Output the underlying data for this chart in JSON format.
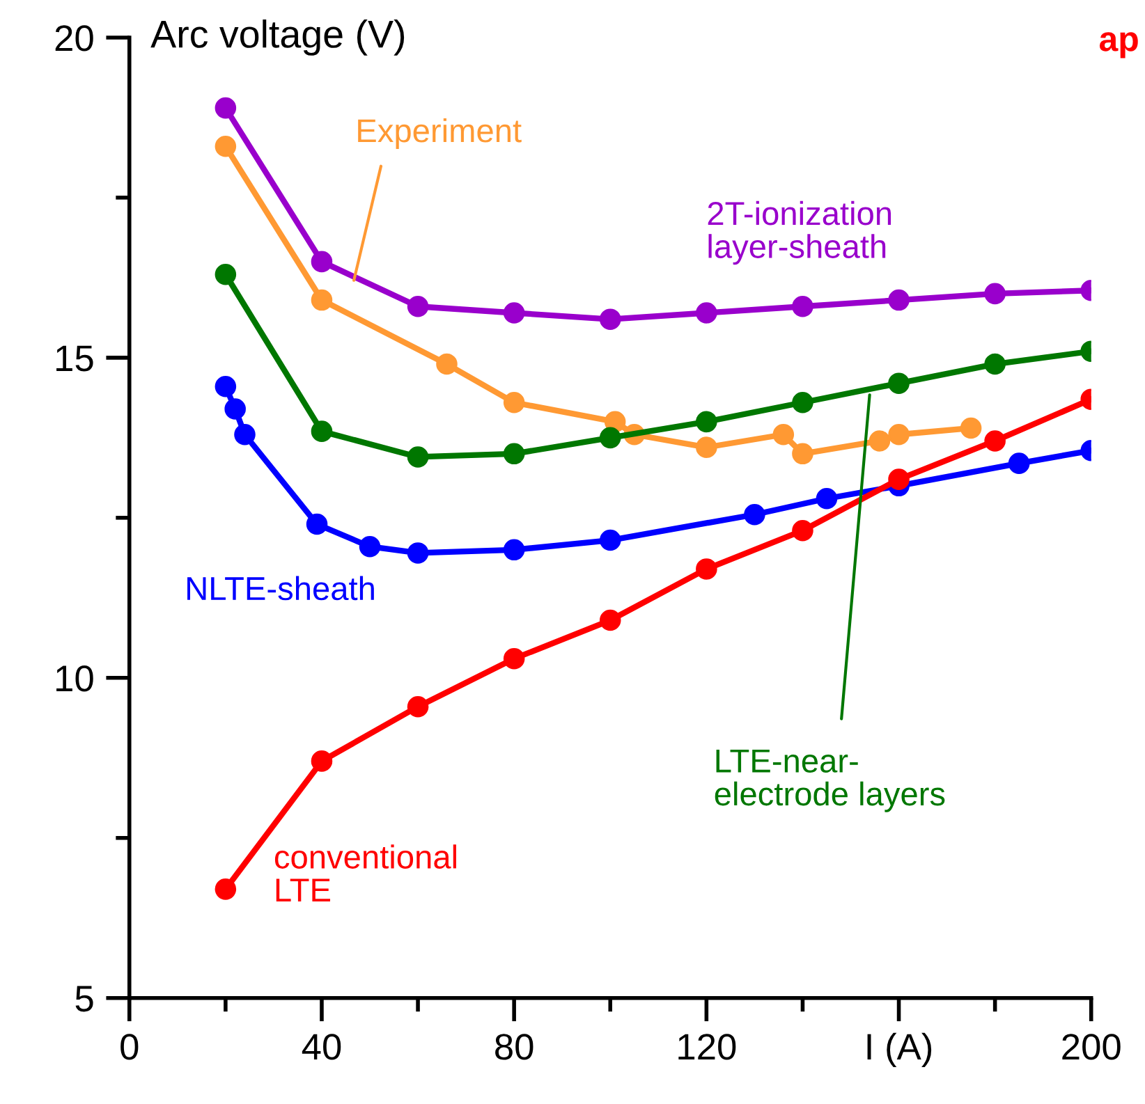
{
  "chart_data": {
    "type": "line",
    "ylabel": "Arc voltage (V)",
    "annotations": [
      "ap"
    ],
    "xlim": [
      0,
      200
    ],
    "ylim": [
      5,
      20
    ],
    "xticks": [
      0,
      {
        "value": 20,
        "label": null
      },
      40,
      {
        "value": 60,
        "label": null
      },
      80,
      {
        "value": 100,
        "label": null
      },
      120,
      {
        "value": 140,
        "label": null
      },
      {
        "value": 160,
        "label": "I (A)"
      },
      {
        "value": 180,
        "label": null
      },
      200
    ],
    "yticks": [
      5,
      {
        "value": 7.5,
        "label": null
      },
      10,
      {
        "value": 12.5,
        "label": null
      },
      15,
      {
        "value": 17.5,
        "label": null
      },
      20
    ],
    "grid": false,
    "legend": false,
    "marker": "circle",
    "line_style": "solid",
    "series": [
      {
        "name": "2T-ionization\nlayer-sheath",
        "color": "#9900cc",
        "x": [
          20,
          40,
          60,
          80,
          100,
          120,
          140,
          160,
          180,
          200
        ],
        "values": [
          18.9,
          16.5,
          15.8,
          15.7,
          15.6,
          15.7,
          15.8,
          15.9,
          16.0,
          16.05
        ]
      },
      {
        "name": "Experiment",
        "color": "#ff9933",
        "x": [
          20,
          40,
          66,
          80,
          101,
          105,
          120,
          136,
          140,
          156,
          160,
          175
        ],
        "values": [
          18.3,
          15.9,
          14.9,
          14.3,
          14.0,
          13.8,
          13.6,
          13.8,
          13.5,
          13.7,
          13.8,
          13.9
        ]
      },
      {
        "name": "LTE-near-\nelectrode layers",
        "color": "#007700",
        "x": [
          20,
          40,
          60,
          80,
          100,
          120,
          140,
          160,
          180,
          200
        ],
        "values": [
          16.3,
          13.85,
          13.45,
          13.5,
          13.75,
          14.0,
          14.3,
          14.6,
          14.9,
          15.1
        ]
      },
      {
        "name": "NLTE-sheath",
        "color": "#0000ff",
        "x": [
          20,
          22,
          24,
          39,
          50,
          60,
          80,
          100,
          130,
          145,
          160,
          185,
          200
        ],
        "values": [
          14.55,
          14.2,
          13.8,
          12.4,
          12.05,
          11.95,
          12.0,
          12.15,
          12.55,
          12.8,
          13.0,
          13.35,
          13.55
        ]
      },
      {
        "name": "conventional\nLTE",
        "color": "#ff0000",
        "x": [
          20,
          40,
          60,
          80,
          100,
          120,
          140,
          160,
          180,
          200
        ],
        "values": [
          6.7,
          8.7,
          9.55,
          10.3,
          10.9,
          11.7,
          12.3,
          13.1,
          13.7,
          14.35
        ]
      }
    ]
  }
}
